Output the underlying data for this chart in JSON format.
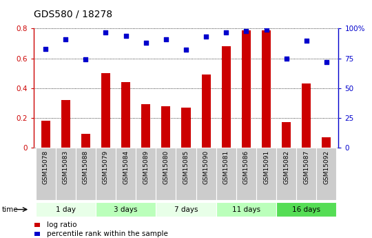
{
  "title": "GDS580 / 18278",
  "samples": [
    "GSM15078",
    "GSM15083",
    "GSM15088",
    "GSM15079",
    "GSM15084",
    "GSM15089",
    "GSM15080",
    "GSM15085",
    "GSM15090",
    "GSM15081",
    "GSM15086",
    "GSM15091",
    "GSM15082",
    "GSM15087",
    "GSM15092"
  ],
  "log_ratio": [
    0.18,
    0.32,
    0.09,
    0.5,
    0.44,
    0.29,
    0.28,
    0.27,
    0.49,
    0.68,
    0.79,
    0.79,
    0.17,
    0.43,
    0.07
  ],
  "pct_rank": [
    83.0,
    91.0,
    74.0,
    97.0,
    94.0,
    88.0,
    91.0,
    82.0,
    93.0,
    97.0,
    98.0,
    99.0,
    75.0,
    90.0,
    72.0
  ],
  "bar_color": "#cc0000",
  "dot_color": "#0000cc",
  "ylim_left": [
    0,
    0.8
  ],
  "ylim_right": [
    0,
    100
  ],
  "yticks_left": [
    0,
    0.2,
    0.4,
    0.6,
    0.8
  ],
  "ytick_labels_left": [
    "0",
    "0.2",
    "0.4",
    "0.6",
    "0.8"
  ],
  "yticks_right": [
    0,
    25,
    50,
    75,
    100
  ],
  "ytick_labels_right": [
    "0",
    "25",
    "50",
    "75",
    "100%"
  ],
  "groups": [
    {
      "label": "1 day",
      "start": 0,
      "end": 3,
      "color": "#e8ffe8"
    },
    {
      "label": "3 days",
      "start": 3,
      "end": 6,
      "color": "#bbffbb"
    },
    {
      "label": "7 days",
      "start": 6,
      "end": 9,
      "color": "#e8ffe8"
    },
    {
      "label": "11 days",
      "start": 9,
      "end": 12,
      "color": "#bbffbb"
    },
    {
      "label": "16 days",
      "start": 12,
      "end": 15,
      "color": "#55dd55"
    }
  ],
  "tick_bg_color": "#cccccc",
  "legend_log_ratio": "log ratio",
  "legend_pct": "percentile rank within the sample",
  "time_label": "time",
  "title_fontsize": 10,
  "axis_fontsize": 7.5,
  "tick_fontsize": 6.5
}
